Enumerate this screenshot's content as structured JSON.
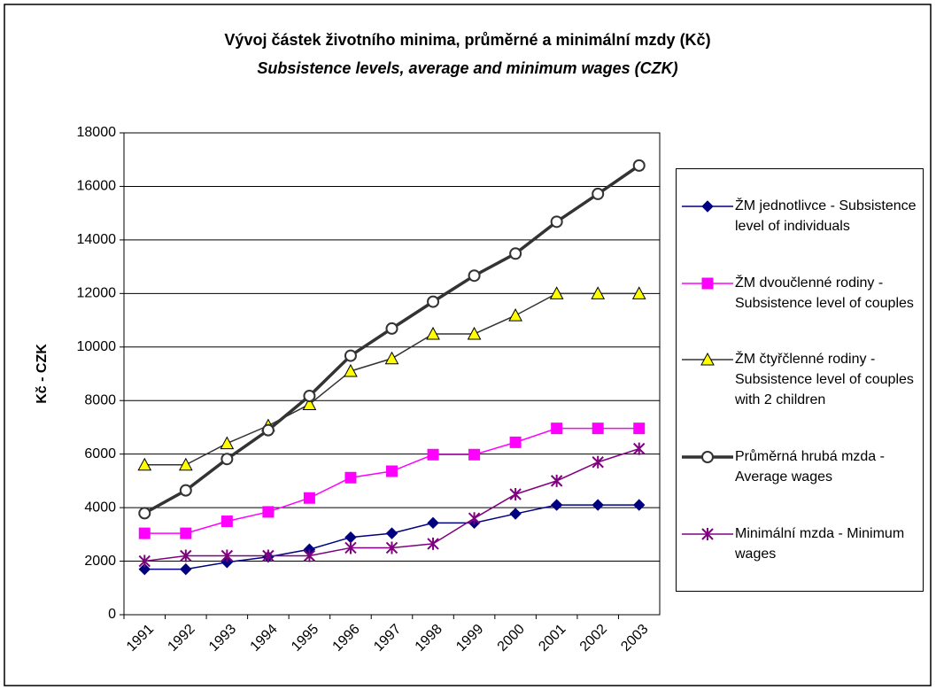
{
  "chart_data": {
    "type": "line",
    "title": "Vývoj částek životního minima, průměrné a minimální mzdy (Kč)",
    "subtitle": "Subsistence levels, average and minimum wages (CZK)",
    "y_label": "Kč - CZK",
    "categories": [
      "1991",
      "1992",
      "1993",
      "1994",
      "1995",
      "1996",
      "1997",
      "1998",
      "1999",
      "2000",
      "2001",
      "2002",
      "2003"
    ],
    "ylim": [
      0,
      18000
    ],
    "yticks": [
      0,
      2000,
      4000,
      6000,
      8000,
      10000,
      12000,
      14000,
      16000,
      18000
    ],
    "grid": true,
    "legend": "right",
    "series": [
      {
        "name": "ŽM jednotlivce - Subsistence level of individuals",
        "color": "#000080",
        "marker": "diamond",
        "marker_fill": "#000080",
        "line_width": 1.5,
        "values": [
          1700,
          1700,
          1960,
          2160,
          2440,
          2890,
          3040,
          3430,
          3430,
          3770,
          4100,
          4100,
          4100
        ]
      },
      {
        "name": "ŽM dvoučlenné rodiny - Subsistence level of couples",
        "color": "#ff00ff",
        "marker": "square",
        "marker_fill": "#ff00ff",
        "line_width": 1.5,
        "values": [
          3040,
          3040,
          3490,
          3840,
          4360,
          5120,
          5360,
          5980,
          5980,
          6440,
          6960,
          6960,
          6960
        ]
      },
      {
        "name": "ŽM čtyřčlenné rodiny - Subsistence level of couples with 2 children",
        "color": "#333333",
        "marker": "triangle",
        "marker_fill": "#ffff00",
        "line_width": 1.5,
        "values": [
          5600,
          5600,
          6400,
          7060,
          7860,
          9100,
          9570,
          10490,
          10490,
          11180,
          12000,
          12000,
          12000
        ]
      },
      {
        "name": "Průměrná hrubá mzda - Average wages",
        "color": "#333333",
        "marker": "circle",
        "marker_fill": "#ffffff",
        "line_width": 3.5,
        "values": [
          3792,
          4644,
          5817,
          6894,
          8172,
          9676,
          10691,
          11693,
          12666,
          13490,
          14680,
          15720,
          16780
        ]
      },
      {
        "name": "Minimální mzda - Minimum wages",
        "color": "#800080",
        "marker": "star",
        "marker_fill": "#800080",
        "line_width": 1.5,
        "values": [
          2000,
          2200,
          2200,
          2200,
          2200,
          2500,
          2500,
          2650,
          3600,
          4500,
          5000,
          5700,
          6200
        ]
      }
    ]
  }
}
